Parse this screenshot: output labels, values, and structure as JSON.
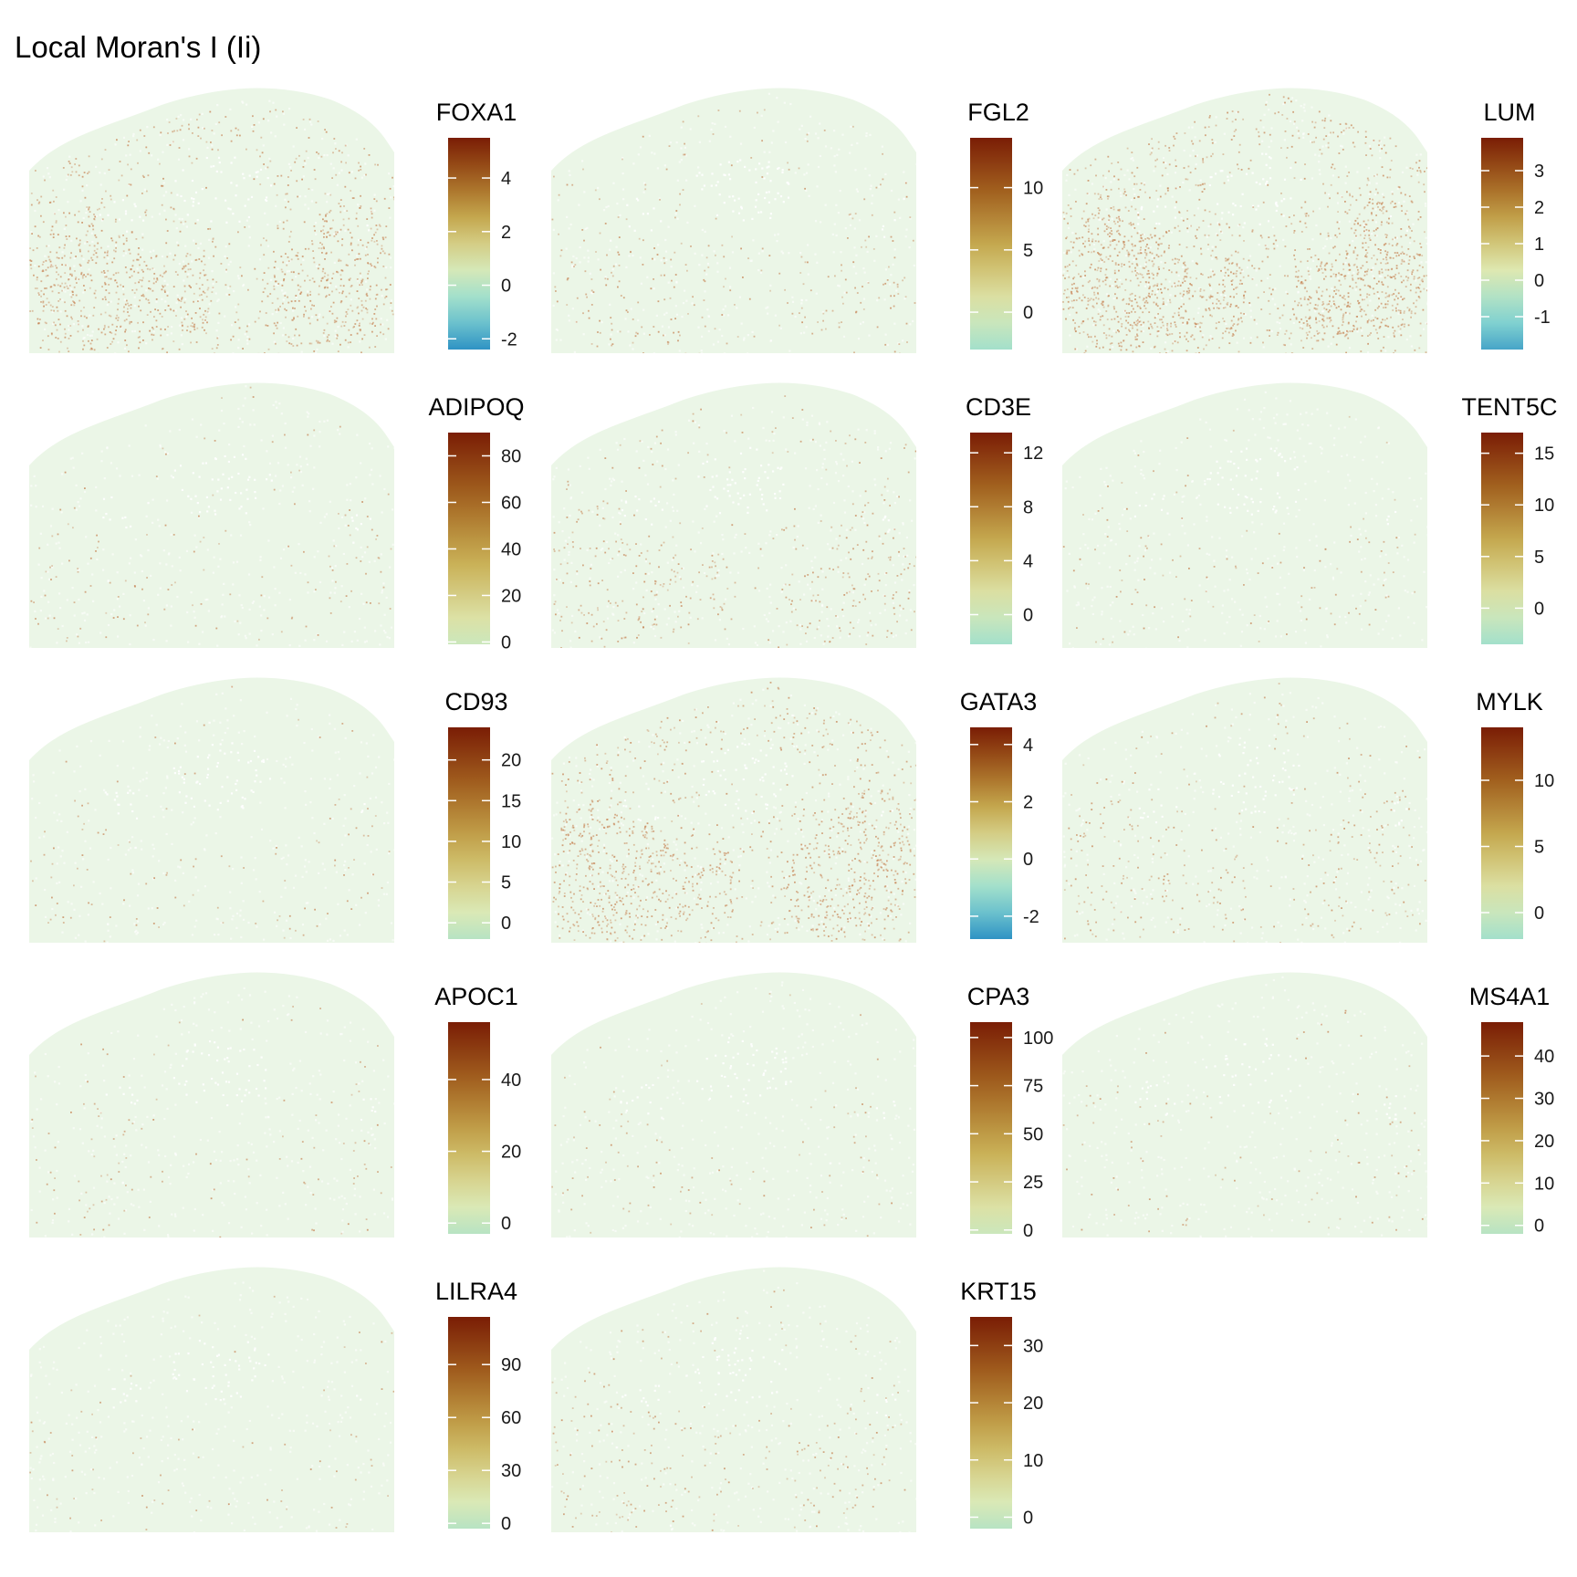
{
  "title": "Local Moran's I (Ii)",
  "colors": {
    "tissue_base": "#e7f4e3",
    "hotspot": "#c8885a",
    "colorbar": [
      "#2f93c4",
      "#8fdcd2",
      "#dfeab4",
      "#c9b055",
      "#a46420",
      "#7a1d05"
    ]
  },
  "chart_data": [
    {
      "type": "heatmap",
      "legend_title": "FOXA1",
      "scale": {
        "min": -2.4,
        "max": 5.5,
        "ticks": [
          -2,
          0,
          2,
          4
        ],
        "tick_labels": [
          "-2",
          "0",
          "2",
          "4"
        ],
        "color_start": 0.0
      },
      "hotspot_level": 0.55
    },
    {
      "type": "heatmap",
      "legend_title": "FGL2",
      "scale": {
        "min": -3,
        "max": 14,
        "ticks": [
          0,
          5,
          10
        ],
        "tick_labels": [
          "0",
          "5",
          "10"
        ],
        "color_start": 0.25
      },
      "hotspot_level": 0.12
    },
    {
      "type": "heatmap",
      "legend_title": "LUM",
      "scale": {
        "min": -1.9,
        "max": 3.9,
        "ticks": [
          -1,
          0,
          1,
          2,
          3
        ],
        "tick_labels": [
          "-1",
          "0",
          "1",
          "2",
          "3"
        ],
        "color_start": 0.05
      },
      "hotspot_level": 0.8
    },
    {
      "type": "heatmap",
      "legend_title": "ADIPOQ",
      "scale": {
        "min": -1,
        "max": 90,
        "ticks": [
          0,
          20,
          40,
          60,
          80
        ],
        "tick_labels": [
          "0",
          "20",
          "40",
          "60",
          "80"
        ],
        "color_start": 0.35
      },
      "hotspot_level": 0.06
    },
    {
      "type": "heatmap",
      "legend_title": "CD3E",
      "scale": {
        "min": -2.2,
        "max": 13.5,
        "ticks": [
          0,
          4,
          8,
          12
        ],
        "tick_labels": [
          "0",
          "4",
          "8",
          "12"
        ],
        "color_start": 0.25
      },
      "hotspot_level": 0.18
    },
    {
      "type": "heatmap",
      "legend_title": "TENT5C",
      "scale": {
        "min": -3.5,
        "max": 17,
        "ticks": [
          0,
          5,
          10,
          15
        ],
        "tick_labels": [
          "0",
          "5",
          "10",
          "15"
        ],
        "color_start": 0.25
      },
      "hotspot_level": 0.05
    },
    {
      "type": "heatmap",
      "legend_title": "CD93",
      "scale": {
        "min": -2,
        "max": 24,
        "ticks": [
          0,
          5,
          10,
          15,
          20
        ],
        "tick_labels": [
          "0",
          "5",
          "10",
          "15",
          "20"
        ],
        "color_start": 0.3
      },
      "hotspot_level": 0.05
    },
    {
      "type": "heatmap",
      "legend_title": "GATA3",
      "scale": {
        "min": -2.8,
        "max": 4.6,
        "ticks": [
          -2,
          0,
          2,
          4
        ],
        "tick_labels": [
          "-2",
          "0",
          "2",
          "4"
        ],
        "color_start": 0.0
      },
      "hotspot_level": 0.55
    },
    {
      "type": "heatmap",
      "legend_title": "MYLK",
      "scale": {
        "min": -2,
        "max": 14,
        "ticks": [
          0,
          5,
          10
        ],
        "tick_labels": [
          "0",
          "5",
          "10"
        ],
        "color_start": 0.25
      },
      "hotspot_level": 0.15
    },
    {
      "type": "heatmap",
      "legend_title": "APOC1",
      "scale": {
        "min": -3,
        "max": 56,
        "ticks": [
          0,
          20,
          40
        ],
        "tick_labels": [
          "0",
          "20",
          "40"
        ],
        "color_start": 0.3
      },
      "hotspot_level": 0.05
    },
    {
      "type": "heatmap",
      "legend_title": "CPA3",
      "scale": {
        "min": -2,
        "max": 108,
        "ticks": [
          0,
          25,
          50,
          75,
          100
        ],
        "tick_labels": [
          "0",
          "25",
          "50",
          "75",
          "100"
        ],
        "color_start": 0.35
      },
      "hotspot_level": 0.04
    },
    {
      "type": "heatmap",
      "legend_title": "MS4A1",
      "scale": {
        "min": -2,
        "max": 48,
        "ticks": [
          0,
          10,
          20,
          30,
          40
        ],
        "tick_labels": [
          "0",
          "10",
          "20",
          "30",
          "40"
        ],
        "color_start": 0.3
      },
      "hotspot_level": 0.04
    },
    {
      "type": "heatmap",
      "legend_title": "LILRA4",
      "scale": {
        "min": -3,
        "max": 117,
        "ticks": [
          0,
          30,
          60,
          90
        ],
        "tick_labels": [
          "0",
          "30",
          "60",
          "90"
        ],
        "color_start": 0.3
      },
      "hotspot_level": 0.03
    },
    {
      "type": "heatmap",
      "legend_title": "KRT15",
      "scale": {
        "min": -2,
        "max": 35,
        "ticks": [
          0,
          10,
          20,
          30
        ],
        "tick_labels": [
          "0",
          "10",
          "20",
          "30"
        ],
        "color_start": 0.3
      },
      "hotspot_level": 0.1
    }
  ]
}
